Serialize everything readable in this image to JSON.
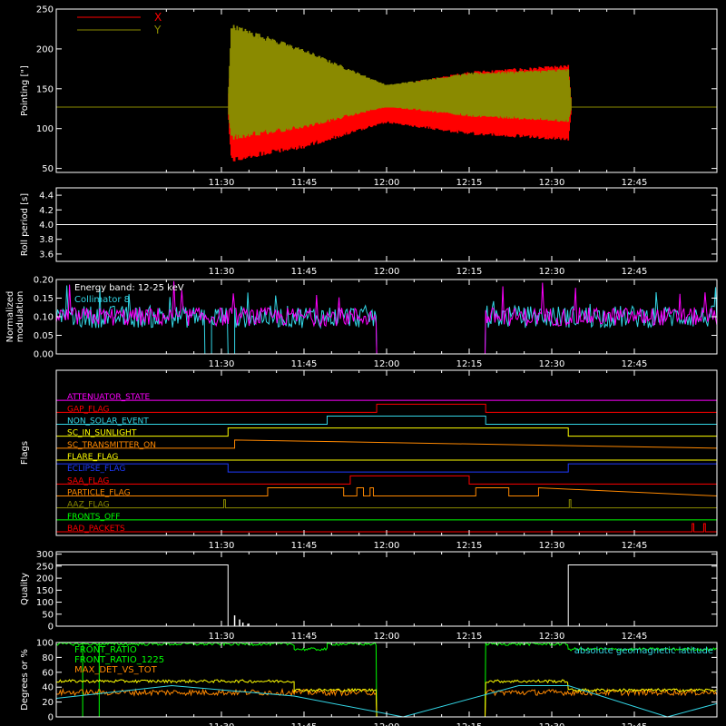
{
  "time_ticks": [
    "11:30",
    "11:45",
    "12:00",
    "12:15",
    "12:30",
    "12:45"
  ],
  "colors": {
    "axis": "#ffffff",
    "red": "#ff0000",
    "olive": "#8a8a00",
    "cyan": "#33d6e6",
    "magenta": "#ff00ff",
    "green": "#00ff00",
    "yellow": "#ffff00",
    "orange": "#ff8800"
  },
  "chart_data": [
    {
      "type": "line",
      "panel": "pointing",
      "ylabel": "Pointing [\"]",
      "ylim": [
        45,
        250
      ],
      "yticks": [
        50,
        100,
        150,
        200,
        250
      ],
      "legend": [
        "X",
        "Y"
      ],
      "series": [
        {
          "name": "X",
          "color": "red",
          "mode": "band",
          "baseline": 127,
          "x": [
            11.0,
            11.52,
            11.53,
            11.75,
            12.0,
            12.25,
            12.55,
            12.56,
            13.0
          ],
          "lower": [
            127,
            127,
            58,
            75,
            107,
            92,
            85,
            127,
            127
          ],
          "upper": [
            127,
            127,
            200,
            175,
            152,
            172,
            180,
            127,
            127
          ]
        },
        {
          "name": "Y",
          "color": "olive",
          "mode": "band",
          "baseline": 127,
          "x": [
            11.0,
            11.52,
            11.53,
            11.75,
            12.0,
            12.25,
            12.55,
            12.56,
            13.0
          ],
          "lower": [
            127,
            127,
            85,
            100,
            127,
            115,
            108,
            127,
            127
          ],
          "upper": [
            127,
            127,
            232,
            200,
            155,
            170,
            175,
            127,
            127
          ]
        }
      ]
    },
    {
      "type": "line",
      "panel": "roll",
      "ylabel": "Roll period [s]",
      "ylim": [
        3.5,
        4.5
      ],
      "yticks": [
        3.6,
        3.8,
        4.0,
        4.2,
        4.4
      ],
      "yticklabels": [
        "3.6",
        "3.8",
        "4.0",
        "4.2",
        "4.4"
      ],
      "series": [
        {
          "color": "axis",
          "x": [
            11.0,
            13.0
          ],
          "y": [
            4.0,
            4.0
          ]
        }
      ]
    },
    {
      "type": "line",
      "panel": "modulation",
      "ylabel": [
        "Normalized",
        "modulation"
      ],
      "ylim": [
        0.0,
        0.2
      ],
      "yticks": [
        0.0,
        0.05,
        0.1,
        0.15,
        0.2
      ],
      "yticklabels": [
        "0.00",
        "0.05",
        "0.10",
        "0.15",
        "0.20"
      ],
      "annotations": [
        "Energy band: 12-25 keV",
        "Collimator 8"
      ],
      "series": [
        {
          "name": "Collimator 8",
          "color": "cyan",
          "mode": "noise",
          "level": 0.1,
          "amp": 0.03,
          "spike_max": 0.19,
          "segments": [
            [
              11.0,
              11.45
            ],
            [
              11.45,
              11.47,
              0.0
            ],
            [
              11.47,
              11.52
            ],
            [
              11.52,
              11.54,
              0.0
            ],
            [
              11.54,
              11.97
            ],
            [
              11.97,
              12.3,
              0.0
            ],
            [
              12.3,
              13.0
            ]
          ]
        },
        {
          "name": "",
          "color": "magenta",
          "mode": "noise",
          "level": 0.1,
          "amp": 0.025,
          "spike_max": 0.2,
          "segments": [
            [
              11.0,
              11.97
            ],
            [
              11.97,
              12.3,
              0.0
            ],
            [
              12.3,
              13.0
            ]
          ]
        }
      ]
    },
    {
      "type": "step",
      "panel": "flags",
      "ylabel": "Flags",
      "flags": [
        {
          "name": "ATTENUATOR_STATE",
          "color": "magenta",
          "steps": [
            [
              11.0,
              0
            ]
          ]
        },
        {
          "name": "GAP_FLAG",
          "color": "red",
          "steps": [
            [
              11.0,
              0
            ],
            [
              11.97,
              1
            ],
            [
              12.3,
              0
            ]
          ]
        },
        {
          "name": "NON_SOLAR_EVENT",
          "color": "cyan",
          "steps": [
            [
              11.0,
              0
            ],
            [
              11.82,
              1
            ],
            [
              12.3,
              0
            ]
          ]
        },
        {
          "name": "SC_IN_SUNLIGHT",
          "color": "yellow",
          "steps": [
            [
              11.0,
              0
            ],
            [
              11.52,
              1
            ],
            [
              12.55,
              0
            ]
          ]
        },
        {
          "name": "SC_TRANSMITTER_ON",
          "color": "orange",
          "steps": [
            [
              11.0,
              0
            ],
            [
              11.54,
              1
            ],
            [
              13.0,
              1
            ]
          ]
        },
        {
          "name": "FLARE_FLAG",
          "color": "yellow",
          "steps": [
            [
              11.0,
              0
            ]
          ]
        },
        {
          "name": "ECLIPSE_FLAG",
          "color": "#1f3bff",
          "steps": [
            [
              11.0,
              1
            ],
            [
              11.52,
              0
            ],
            [
              12.55,
              1
            ]
          ]
        },
        {
          "name": "SAA_FLAG",
          "color": "red",
          "steps": [
            [
              11.0,
              0
            ],
            [
              11.89,
              1
            ],
            [
              12.25,
              0
            ]
          ]
        },
        {
          "name": "PARTICLE_FLAG",
          "color": "orange",
          "steps": [
            [
              11.0,
              0
            ],
            [
              11.64,
              1
            ],
            [
              11.87,
              0
            ],
            [
              11.91,
              1
            ],
            [
              11.93,
              0
            ],
            [
              11.95,
              1
            ],
            [
              11.96,
              0
            ],
            [
              12.27,
              1
            ],
            [
              12.37,
              0
            ],
            [
              12.46,
              1
            ],
            [
              13.0,
              1
            ]
          ]
        },
        {
          "name": "AAZ_FLAG",
          "color": "olive",
          "steps": [
            [
              11.0,
              0
            ],
            [
              11.507,
              1
            ],
            [
              11.512,
              0
            ],
            [
              12.553,
              1
            ],
            [
              12.558,
              0
            ]
          ]
        },
        {
          "name": "FRONTS_OFF",
          "color": "green",
          "steps": [
            [
              11.0,
              0
            ]
          ]
        },
        {
          "name": "BAD_PACKETS",
          "color": "red",
          "steps": [
            [
              11.0,
              0
            ],
            [
              12.925,
              1
            ],
            [
              12.93,
              0
            ],
            [
              12.96,
              1
            ],
            [
              12.965,
              0
            ]
          ]
        }
      ]
    },
    {
      "type": "line",
      "panel": "quality",
      "ylabel": "Quality",
      "ylim": [
        0,
        310
      ],
      "yticks": [
        0,
        50,
        100,
        150,
        200,
        250,
        300
      ],
      "series": [
        {
          "color": "axis",
          "x": [
            11.0,
            11.52,
            11.52,
            12.55,
            12.55,
            13.0
          ],
          "y": [
            255,
            255,
            0,
            0,
            255,
            255
          ]
        }
      ]
    },
    {
      "type": "line",
      "panel": "attitude",
      "ylabel": "Degrees or %",
      "ylim": [
        0,
        100
      ],
      "yticks": [
        0,
        20,
        40,
        60,
        80,
        100
      ],
      "legend": [
        "FRONT_RATIO",
        "FRONT_RATIO_1225",
        "MAX_DET_VS_TOT"
      ],
      "right_label": "absolute geomagnetic latitude",
      "series": [
        {
          "name": "FRONT_RATIO",
          "color": "green",
          "mode": "noise",
          "amp": 2,
          "segments": [
            [
              11.0,
              11.72,
              98
            ],
            [
              11.72,
              11.82,
              91
            ],
            [
              11.82,
              11.97,
              98
            ],
            [
              11.97,
              12.3,
              0
            ],
            [
              12.3,
              12.55,
              98
            ],
            [
              12.55,
              13.0,
              91
            ]
          ]
        },
        {
          "name": "FRONT_RATIO_1225",
          "color": "green",
          "x": [
            11.08,
            11.08,
            11.13,
            11.13
          ],
          "y": [
            100,
            0,
            0,
            100
          ]
        },
        {
          "name": "MAX_DET_VS_TOT",
          "color": "orange",
          "mode": "noise",
          "amp": 4,
          "segments": [
            [
              11.0,
              11.97,
              33
            ],
            [
              11.97,
              12.3,
              0
            ],
            [
              12.3,
              13.0,
              33
            ]
          ]
        },
        {
          "name": "",
          "color": "yellow",
          "mode": "noise",
          "amp": 2,
          "segments": [
            [
              11.0,
              11.72,
              48
            ],
            [
              11.72,
              11.97,
              36
            ],
            [
              11.97,
              12.3,
              0
            ],
            [
              12.3,
              12.55,
              48
            ],
            [
              12.55,
              13.0,
              36
            ]
          ]
        },
        {
          "name": "absolute geomagnetic latitude",
          "color": "cyan",
          "x": [
            11.0,
            11.35,
            11.72,
            12.05,
            12.4,
            12.55,
            12.85,
            13.0
          ],
          "y": [
            25,
            42,
            28,
            0,
            42,
            42,
            0,
            18
          ]
        }
      ]
    }
  ]
}
